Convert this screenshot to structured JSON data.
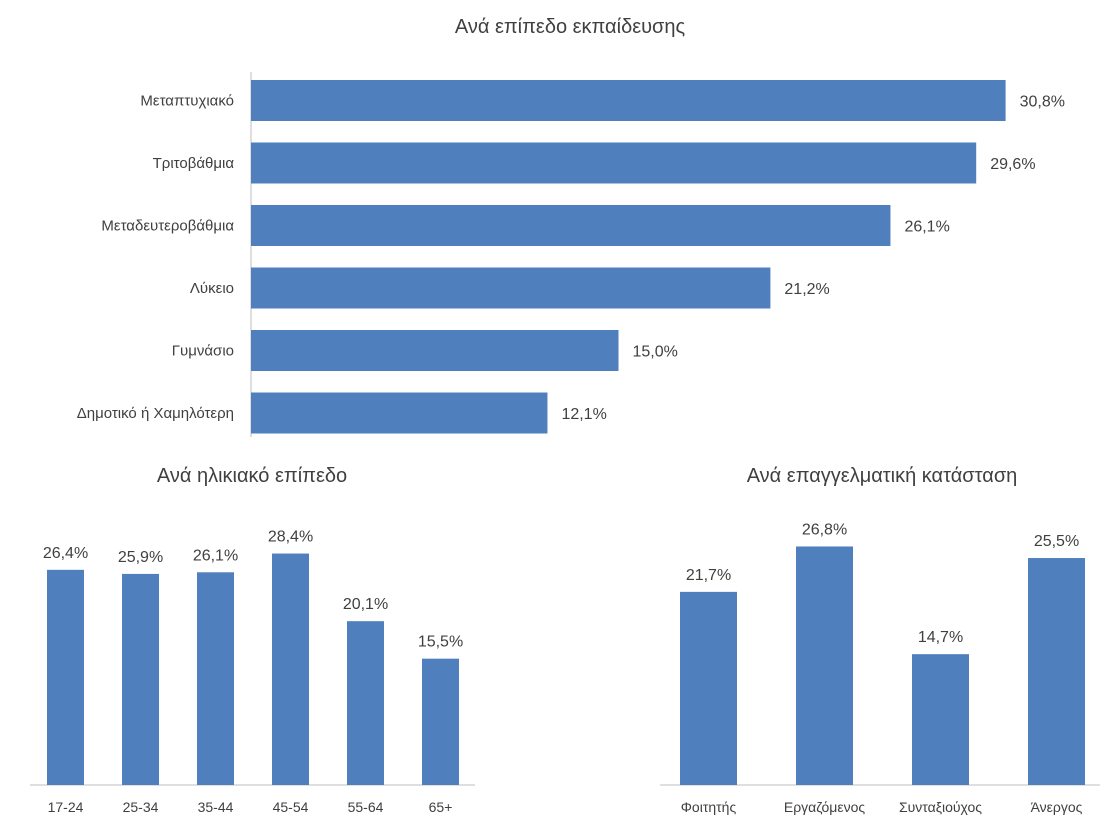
{
  "colors": {
    "bar": "#4f7fbc",
    "axis": "#bfbfbf",
    "text": "#404040"
  },
  "chart_data": [
    {
      "type": "bar",
      "orientation": "horizontal",
      "title": "Ανά επίπεδο εκπαίδευσης",
      "categories": [
        "Μεταπτυχιακό",
        "Τριτοβάθμια",
        "Μεταδευτεροβάθμια",
        "Λύκειο",
        "Γυμνάσιο",
        "Δημοτικό ή Χαμηλότερη"
      ],
      "values": [
        30.8,
        29.6,
        26.1,
        21.2,
        15.0,
        12.1
      ],
      "labels": [
        "30,8%",
        "29,6%",
        "26,1%",
        "21,2%",
        "15,0%",
        "12,1%"
      ],
      "grid": false
    },
    {
      "type": "bar",
      "title": "Ανά ηλικιακό επίπεδο",
      "categories": [
        "17-24",
        "25-34",
        "35-44",
        "45-54",
        "55-64",
        "65+"
      ],
      "values": [
        26.4,
        25.9,
        26.1,
        28.4,
        20.1,
        15.5
      ],
      "labels": [
        "26,4%",
        "25,9%",
        "26,1%",
        "28,4%",
        "20,1%",
        "15,5%"
      ],
      "grid": false
    },
    {
      "type": "bar",
      "title": "Ανά επαγγελματική κατάσταση",
      "categories": [
        "Φοιτητής",
        "Εργαζόμενος",
        "Συνταξιούχος",
        "Άνεργος"
      ],
      "values": [
        21.7,
        26.8,
        14.7,
        25.5
      ],
      "labels": [
        "21,7%",
        "26,8%",
        "14,7%",
        "25,5%"
      ],
      "grid": false
    }
  ]
}
